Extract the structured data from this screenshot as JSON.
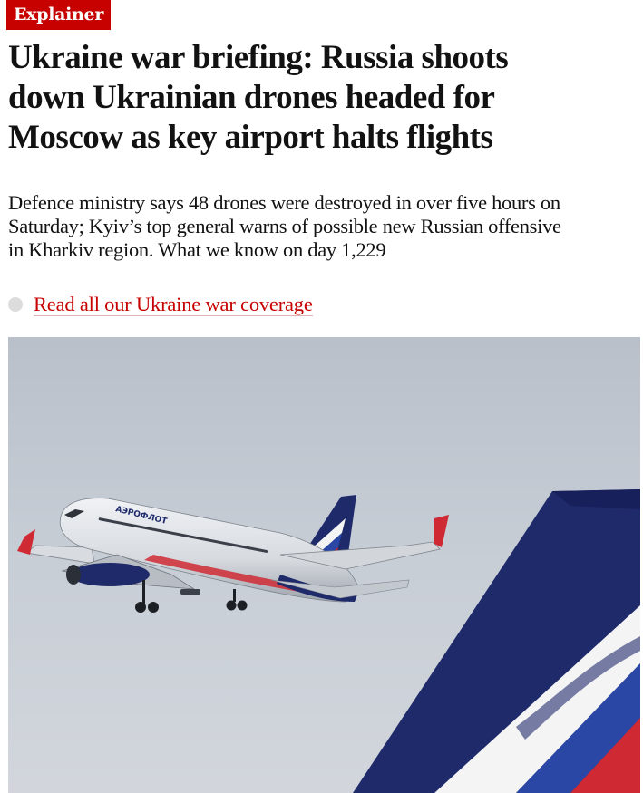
{
  "article": {
    "kicker": "Explainer",
    "headline": "Ukraine war briefing: Russia shoots down Ukrainian drones headed for Moscow as key airport halts flights",
    "standfirst": "Defence ministry says 48 drones were destroyed in over five hours on Saturday; Kyiv’s top general warns of possible new Russian offensive in Kharkiv region. What we know on day 1,229",
    "related_link": "Read all our Ukraine war coverage"
  },
  "hero_image": {
    "airline_livery": "АЭРОФЛОТ",
    "colors": {
      "sky": "#c5cbd3",
      "fuselage": "#e9ecef",
      "navy": "#1f2a6b",
      "red": "#cf2a34",
      "white": "#f4f4f4"
    }
  },
  "colors": {
    "accent": "#c70000",
    "text": "#121212",
    "bullet": "#dcdcdc"
  }
}
